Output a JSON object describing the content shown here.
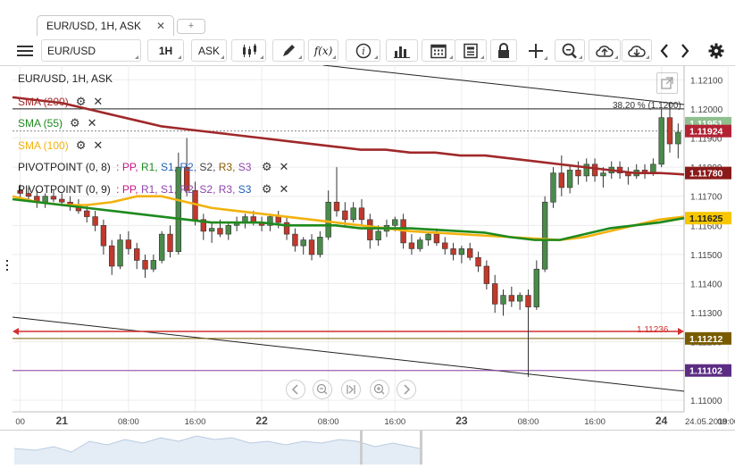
{
  "tab": {
    "title": "EUR/USD, 1H, ASK",
    "close": "✕",
    "new": "+"
  },
  "toolbar": {
    "symbol": "EUR/USD",
    "period": "1H",
    "side": "ASK",
    "fx_label": "f(x)"
  },
  "chart_title": "EUR/USD, 1H, ASK",
  "indicators": [
    {
      "label": "SMA (200)",
      "color": "#a52a2a"
    },
    {
      "label": "SMA (55)",
      "color": "#1e8a1e"
    },
    {
      "label": "SMA (100)",
      "color": "#f2b20e"
    }
  ],
  "pivots": [
    {
      "prefix": "PIVOTPOINT (0, 8)",
      "parts": [
        ": PP,",
        "R1,",
        "S1,",
        "R2,",
        "S2,",
        "R3,",
        "S3"
      ]
    },
    {
      "prefix": "PIVOTPOINT (0, 9)",
      "parts": [
        ": PP,",
        "R1,",
        "S1,",
        "R2,",
        "S2,",
        "R3,",
        "S3"
      ]
    }
  ],
  "fib_label": "38.20 % (1.1200)",
  "line_label_red": "1.11236",
  "price_axis": {
    "ticks": [
      "1.12100",
      "1.12000",
      "1.11951",
      "1.11924",
      "1.11800",
      "1.11780",
      "1.11700",
      "1.11625",
      "1.11600",
      "1.11500",
      "1.11400",
      "1.11300",
      "1.11212",
      "1.11200",
      "1.11102",
      "1.11100",
      "1.11000"
    ],
    "tick_values": [
      1.121,
      1.12,
      1.119,
      1.118,
      1.117,
      1.116,
      1.115,
      1.114,
      1.113,
      1.112,
      1.111,
      1.11
    ],
    "tick_labels": [
      "1.12100",
      "1.12000",
      "1.11900",
      "1.11800",
      "1.11700",
      "1.11600",
      "1.11500",
      "1.11400",
      "1.11300",
      "1.11200",
      "1.11100",
      "1.11000"
    ],
    "badges": [
      {
        "value": 1.11951,
        "label": "1.11951",
        "bg": "#8fbf8f",
        "fg": "#ffffff"
      },
      {
        "value": 1.11924,
        "label": "1.11924",
        "bg": "#b22234",
        "fg": "#ffffff"
      },
      {
        "value": 1.1178,
        "label": "1.11780",
        "bg": "#8b1a1a",
        "fg": "#ffffff"
      },
      {
        "value": 1.11625,
        "label": "1.11625",
        "bg": "#f7c600",
        "fg": "#222222"
      },
      {
        "value": 1.11212,
        "label": "1.11212",
        "bg": "#7a5c00",
        "fg": "#ffffff"
      },
      {
        "value": 1.11102,
        "label": "1.11102",
        "bg": "#5b2c83",
        "fg": "#ffffff"
      }
    ]
  },
  "time_axis": {
    "labels": [
      {
        "t": 0,
        "text": "00",
        "bold": false
      },
      {
        "t": 5,
        "text": "21",
        "bold": true
      },
      {
        "t": 13,
        "text": "08:00",
        "bold": false
      },
      {
        "t": 21,
        "text": "16:00",
        "bold": false
      },
      {
        "t": 29,
        "text": "22",
        "bold": true
      },
      {
        "t": 37,
        "text": "08:00",
        "bold": false
      },
      {
        "t": 45,
        "text": "16:00",
        "bold": false
      },
      {
        "t": 53,
        "text": "23",
        "bold": true
      },
      {
        "t": 61,
        "text": "08:00",
        "bold": false
      },
      {
        "t": 69,
        "text": "16:00",
        "bold": false
      },
      {
        "t": 77,
        "text": "24",
        "bold": true
      },
      {
        "t": 85,
        "text": "08:00",
        "bold": false
      }
    ],
    "date_label": "24.05.2019"
  },
  "colors": {
    "up": "#4a8a4a",
    "down": "#c0392b",
    "sma200": "#a0282a",
    "sma55": "#1e8a1e",
    "sma100": "#f2b20e",
    "red_line": "#d32f2f",
    "purple_line": "#8e44ad",
    "brown_line": "#7a5c00"
  },
  "chart_data": {
    "type": "candlestick",
    "symbol": "EUR/USD",
    "timeframe": "1H",
    "ylim": [
      1.1096,
      1.1215
    ],
    "candles": [
      [
        1.1172,
        1.1174,
        1.1169,
        1.1171
      ],
      [
        1.1171,
        1.1173,
        1.1168,
        1.117
      ],
      [
        1.117,
        1.1172,
        1.1166,
        1.1168
      ],
      [
        1.1168,
        1.1171,
        1.1166,
        1.117
      ],
      [
        1.117,
        1.1172,
        1.1168,
        1.1169
      ],
      [
        1.1169,
        1.1171,
        1.1167,
        1.1168
      ],
      [
        1.1168,
        1.117,
        1.1165,
        1.1167
      ],
      [
        1.1167,
        1.1169,
        1.1164,
        1.1165
      ],
      [
        1.1165,
        1.1167,
        1.1161,
        1.1163
      ],
      [
        1.1163,
        1.1165,
        1.1158,
        1.116
      ],
      [
        1.116,
        1.1162,
        1.115,
        1.1153
      ],
      [
        1.1153,
        1.1155,
        1.1143,
        1.1146
      ],
      [
        1.1146,
        1.1157,
        1.1145,
        1.1155
      ],
      [
        1.1155,
        1.1158,
        1.115,
        1.1152
      ],
      [
        1.1152,
        1.1154,
        1.1145,
        1.1148
      ],
      [
        1.1148,
        1.115,
        1.1142,
        1.1145
      ],
      [
        1.1145,
        1.115,
        1.1144,
        1.1148
      ],
      [
        1.1148,
        1.1158,
        1.1147,
        1.1157
      ],
      [
        1.1157,
        1.116,
        1.1149,
        1.1151
      ],
      [
        1.1151,
        1.1185,
        1.115,
        1.118
      ],
      [
        1.118,
        1.119,
        1.117,
        1.1172
      ],
      [
        1.1172,
        1.1175,
        1.116,
        1.1162
      ],
      [
        1.1162,
        1.1164,
        1.1155,
        1.1158
      ],
      [
        1.1158,
        1.1161,
        1.1154,
        1.1159
      ],
      [
        1.1159,
        1.1162,
        1.1156,
        1.1157
      ],
      [
        1.1157,
        1.1161,
        1.1155,
        1.116
      ],
      [
        1.116,
        1.1163,
        1.1158,
        1.1161
      ],
      [
        1.1161,
        1.1164,
        1.1159,
        1.1163
      ],
      [
        1.1163,
        1.1165,
        1.116,
        1.1161
      ],
      [
        1.1161,
        1.1163,
        1.1158,
        1.116
      ],
      [
        1.116,
        1.1164,
        1.1158,
        1.1163
      ],
      [
        1.1163,
        1.1165,
        1.1159,
        1.1161
      ],
      [
        1.1161,
        1.1163,
        1.1155,
        1.1157
      ],
      [
        1.1157,
        1.1159,
        1.1151,
        1.1153
      ],
      [
        1.1153,
        1.1156,
        1.115,
        1.1155
      ],
      [
        1.1155,
        1.1157,
        1.1148,
        1.115
      ],
      [
        1.115,
        1.1158,
        1.1149,
        1.1156
      ],
      [
        1.1156,
        1.1172,
        1.1155,
        1.1168
      ],
      [
        1.1168,
        1.118,
        1.1163,
        1.1165
      ],
      [
        1.1165,
        1.1168,
        1.116,
        1.1162
      ],
      [
        1.1162,
        1.1168,
        1.1161,
        1.1166
      ],
      [
        1.1166,
        1.1169,
        1.116,
        1.1162
      ],
      [
        1.1162,
        1.1164,
        1.1152,
        1.1155
      ],
      [
        1.1155,
        1.116,
        1.1153,
        1.1158
      ],
      [
        1.1158,
        1.1162,
        1.1156,
        1.116
      ],
      [
        1.116,
        1.1163,
        1.1158,
        1.1162
      ],
      [
        1.1162,
        1.1164,
        1.1152,
        1.1154
      ],
      [
        1.1154,
        1.1157,
        1.115,
        1.1152
      ],
      [
        1.1152,
        1.1156,
        1.1151,
        1.1155
      ],
      [
        1.1155,
        1.1158,
        1.1153,
        1.1157
      ],
      [
        1.1157,
        1.1159,
        1.1153,
        1.1154
      ],
      [
        1.1154,
        1.1156,
        1.115,
        1.1152
      ],
      [
        1.1152,
        1.1154,
        1.1148,
        1.115
      ],
      [
        1.115,
        1.1153,
        1.1147,
        1.1152
      ],
      [
        1.1152,
        1.1154,
        1.1148,
        1.1149
      ],
      [
        1.1149,
        1.1151,
        1.1144,
        1.1146
      ],
      [
        1.1146,
        1.1148,
        1.1138,
        1.114
      ],
      [
        1.114,
        1.1143,
        1.113,
        1.1133
      ],
      [
        1.1133,
        1.1138,
        1.1129,
        1.1136
      ],
      [
        1.1136,
        1.1139,
        1.1132,
        1.1134
      ],
      [
        1.1134,
        1.1137,
        1.1131,
        1.1136
      ],
      [
        1.1136,
        1.1138,
        1.1108,
        1.1132
      ],
      [
        1.1132,
        1.1148,
        1.1131,
        1.1145
      ],
      [
        1.1145,
        1.117,
        1.1144,
        1.1168
      ],
      [
        1.1168,
        1.118,
        1.1166,
        1.1178
      ],
      [
        1.1178,
        1.1184,
        1.117,
        1.1173
      ],
      [
        1.1173,
        1.1181,
        1.1171,
        1.1179
      ],
      [
        1.1179,
        1.1182,
        1.1174,
        1.1177
      ],
      [
        1.1177,
        1.1183,
        1.1175,
        1.1181
      ],
      [
        1.1181,
        1.1183,
        1.1175,
        1.1177
      ],
      [
        1.1177,
        1.118,
        1.1173,
        1.1178
      ],
      [
        1.1178,
        1.1182,
        1.1176,
        1.118
      ],
      [
        1.118,
        1.1182,
        1.1176,
        1.1178
      ],
      [
        1.1178,
        1.118,
        1.1174,
        1.1177
      ],
      [
        1.1177,
        1.1181,
        1.1176,
        1.1179
      ],
      [
        1.1179,
        1.1181,
        1.1176,
        1.1178
      ],
      [
        1.1178,
        1.1183,
        1.1177,
        1.1181
      ],
      [
        1.1181,
        1.12,
        1.118,
        1.1197
      ],
      [
        1.1197,
        1.1202,
        1.1185,
        1.1188
      ],
      [
        1.1188,
        1.1195,
        1.1183,
        1.1192
      ]
    ],
    "sma200": [
      1.1204,
      1.1203,
      1.1202,
      1.12,
      1.1198,
      1.1196,
      1.1194,
      1.1193,
      1.1192,
      1.1191,
      1.119,
      1.1189,
      1.1188,
      1.1187,
      1.1186,
      1.1186,
      1.1185,
      1.1185,
      1.1184,
      1.1184,
      1.1183,
      1.1182,
      1.1181,
      1.118,
      1.1179,
      1.1178,
      1.1178,
      1.11775
    ],
    "sma100": [
      1.117,
      1.1168,
      1.1167,
      1.1167,
      1.1168,
      1.117,
      1.117,
      1.1168,
      1.1166,
      1.1165,
      1.1164,
      1.1163,
      1.1162,
      1.1161,
      1.116,
      1.1159,
      1.1158,
      1.11575,
      1.1157,
      1.11565,
      1.1156,
      1.11555,
      1.1155,
      1.1156,
      1.1158,
      1.116,
      1.1162,
      1.1163
    ],
    "sma55": [
      1.1169,
      1.1168,
      1.1167,
      1.1166,
      1.1165,
      1.1164,
      1.1163,
      1.1162,
      1.1161,
      1.1161,
      1.1161,
      1.116,
      1.116,
      1.116,
      1.1159,
      1.1159,
      1.1159,
      1.11585,
      1.1158,
      1.11575,
      1.1156,
      1.1155,
      1.1155,
      1.1157,
      1.1159,
      1.116,
      1.1161,
      1.11625
    ],
    "horizontal_lines": [
      {
        "value": 1.12,
        "label": "38.20 % (1.1200)"
      },
      {
        "value": 1.11236,
        "label": "1.11236"
      },
      {
        "value": 1.11212,
        "label": "1.11212"
      },
      {
        "value": 1.11102,
        "label": "1.11102"
      }
    ]
  }
}
